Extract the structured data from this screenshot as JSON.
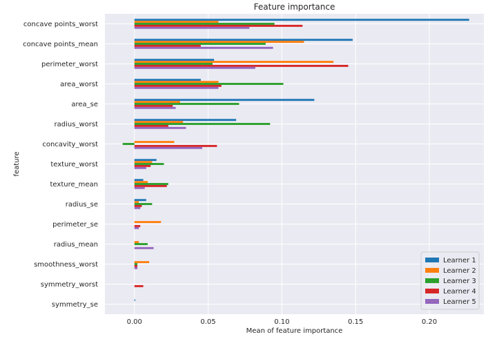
{
  "chart_data": {
    "type": "bar",
    "orientation": "horizontal",
    "title": "Feature importance",
    "xlabel": "Mean of feature importance",
    "ylabel": "feature",
    "xlim": [
      -0.02,
      0.237
    ],
    "xticks": [
      "0.00",
      "0.05",
      "0.10",
      "0.15",
      "0.20"
    ],
    "xtick_values": [
      0,
      0.05,
      0.1,
      0.15,
      0.2
    ],
    "grid": true,
    "legend_position": "lower-right",
    "categories": [
      "concave points_worst",
      "concave points_mean",
      "perimeter_worst",
      "area_worst",
      "area_se",
      "radius_worst",
      "concavity_worst",
      "texture_worst",
      "texture_mean",
      "radius_se",
      "perimeter_se",
      "radius_mean",
      "smoothness_worst",
      "symmetry_worst",
      "symmetry_se"
    ],
    "series": [
      {
        "name": "Learner 1",
        "color": "#1f77b4",
        "values": [
          0.227,
          0.148,
          0.054,
          0.045,
          0.122,
          0.069,
          0.0,
          0.015,
          0.006,
          0.008,
          0.0,
          0.0,
          0.0,
          0.0,
          0.0005
        ]
      },
      {
        "name": "Learner 2",
        "color": "#ff7f0e",
        "values": [
          0.057,
          0.115,
          0.135,
          0.057,
          0.031,
          0.033,
          0.027,
          0.012,
          0.009,
          0.003,
          0.018,
          0.003,
          0.01,
          0.0,
          0.0
        ]
      },
      {
        "name": "Learner 3",
        "color": "#2ca02c",
        "values": [
          0.095,
          0.089,
          0.053,
          0.101,
          0.071,
          0.092,
          -0.008,
          0.02,
          0.023,
          0.012,
          0.0,
          0.009,
          0.002,
          0.0,
          0.0
        ]
      },
      {
        "name": "Learner 4",
        "color": "#d62728",
        "values": [
          0.114,
          0.045,
          0.145,
          0.059,
          0.026,
          0.023,
          0.056,
          0.011,
          0.022,
          0.005,
          0.004,
          0.0,
          0.002,
          0.006,
          0.0
        ]
      },
      {
        "name": "Learner 5",
        "color": "#9467bd",
        "values": [
          0.078,
          0.094,
          0.082,
          0.057,
          0.028,
          0.035,
          0.046,
          0.008,
          0.007,
          0.004,
          0.003,
          0.013,
          0.002,
          0.0,
          0.0
        ]
      }
    ]
  }
}
